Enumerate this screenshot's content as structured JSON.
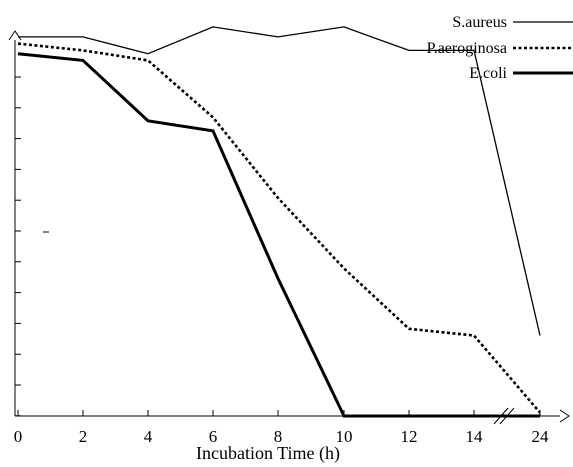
{
  "chart_data": {
    "type": "line",
    "title": "",
    "xlabel": "Incubation Time (h)",
    "ylabel": "",
    "x_ticks": [
      0,
      2,
      4,
      6,
      8,
      10,
      12,
      14,
      24
    ],
    "x_tick_labels": [
      "0",
      "2",
      "4",
      "6",
      "8",
      "10",
      "12",
      "14",
      "24"
    ],
    "x_axis_break": "between 14 and 24",
    "ylim": [
      0,
      11
    ],
    "y_tick_count": 12,
    "grid": false,
    "legend_position": "top-right",
    "series": [
      {
        "name": "S.aureus",
        "style": "thin-solid",
        "x": [
          0,
          2,
          4,
          6,
          8,
          10,
          12,
          14,
          24
        ],
        "y": [
          11.3,
          11.3,
          10.8,
          11.6,
          11.3,
          11.6,
          10.9,
          10.9,
          2.4
        ]
      },
      {
        "name": "P.aeroginosa",
        "style": "dotted",
        "x": [
          0,
          2,
          4,
          6,
          8,
          10,
          12,
          14,
          24
        ],
        "y": [
          11.1,
          10.9,
          10.6,
          8.9,
          6.5,
          4.4,
          2.6,
          2.4,
          0.1
        ]
      },
      {
        "name": "E.coli",
        "style": "thick-solid",
        "x": [
          0,
          2,
          4,
          6,
          8,
          10,
          12,
          14,
          24
        ],
        "y": [
          10.8,
          10.6,
          8.8,
          8.5,
          4.1,
          0.0,
          0.0,
          0.0,
          0.0
        ]
      }
    ]
  }
}
